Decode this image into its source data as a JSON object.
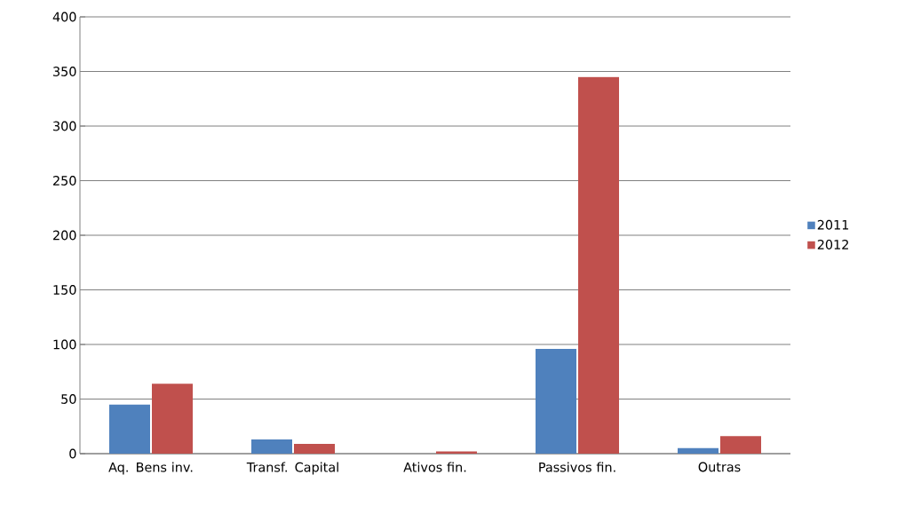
{
  "chart_data": {
    "type": "bar",
    "categories": [
      "Aq. Bens inv.",
      "Transf. Capital",
      "Ativos fin.",
      "Passivos fin.",
      "Outras"
    ],
    "series": [
      {
        "name": "2011",
        "color": "#4f81bd",
        "values": [
          45,
          13,
          0,
          96,
          5
        ]
      },
      {
        "name": "2012",
        "color": "#c0504d",
        "values": [
          64,
          9,
          2,
          345,
          16
        ]
      }
    ],
    "ylim": [
      0,
      400
    ],
    "yticks": [
      0,
      50,
      100,
      150,
      200,
      250,
      300,
      350,
      400
    ],
    "grid": "y",
    "legend": "right"
  }
}
